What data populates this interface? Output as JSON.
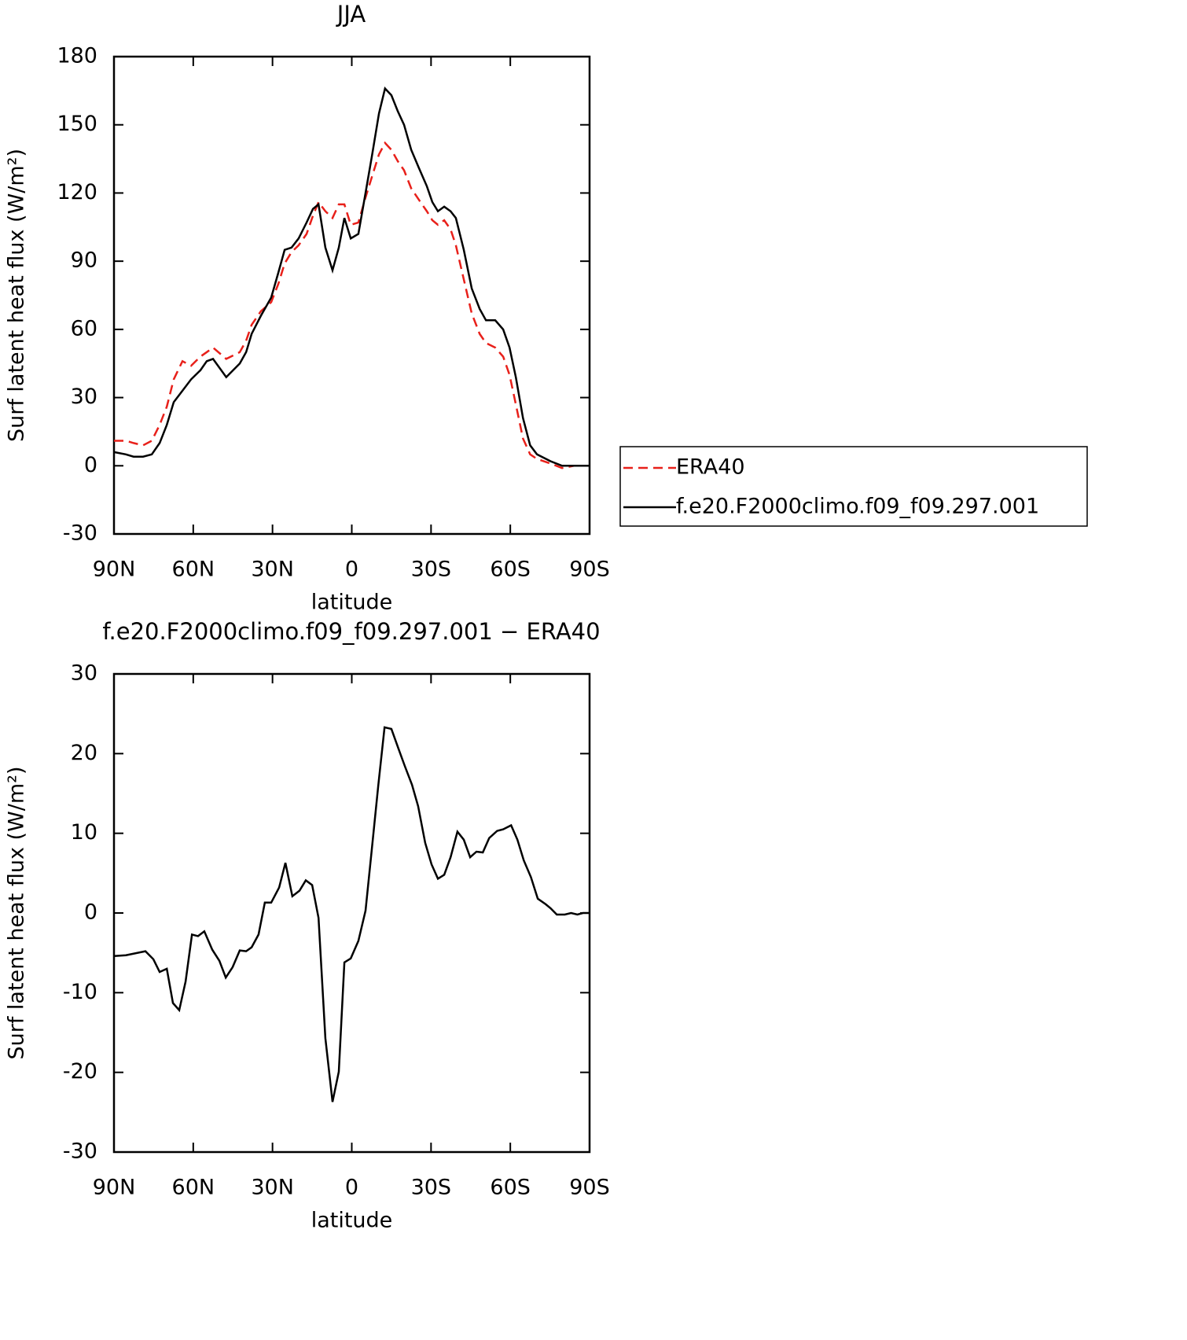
{
  "chart_data": [
    {
      "type": "line",
      "title": "JJA",
      "xlabel": "latitude",
      "ylabel": "Surf latent heat flux (W/m²)",
      "xlim": [
        90,
        -90
      ],
      "xticks": [
        {
          "value": 90,
          "label": "90N"
        },
        {
          "value": 60,
          "label": "60N"
        },
        {
          "value": 30,
          "label": "30N"
        },
        0,
        {
          "value": -30,
          "label": "30S"
        },
        {
          "value": -60,
          "label": "60S"
        },
        {
          "value": -90,
          "label": "90S"
        }
      ],
      "ylim": [
        -30,
        180
      ],
      "yticks": [
        -30,
        0,
        30,
        60,
        90,
        120,
        150,
        180
      ],
      "legend": "right",
      "x": [
        90,
        85.5,
        82.6,
        79,
        75.7,
        72.7,
        70,
        67.4,
        64.1,
        60.8,
        57.3,
        54.9,
        52.5,
        47.5,
        42.4,
        40,
        37.9,
        34.4,
        30.5,
        27.8,
        25.4,
        22.8,
        20.1,
        17.1,
        14.7,
        12.6,
        10,
        7.3,
        4.9,
        2.8,
        0.4,
        -2.5,
        -5.2,
        -7.6,
        -10.3,
        -12.6,
        -15,
        -17.4,
        -19.8,
        -22.5,
        -25.4,
        -28.4,
        -30.5,
        -32.6,
        -35,
        -37.4,
        -39.4,
        -42.4,
        -45.4,
        -48.4,
        -50.8,
        -54.3,
        -57.3,
        -59.7,
        -62.1,
        -64.8,
        -67.5,
        -70.1,
        -75.2,
        -79.6,
        -84.1,
        -90
      ],
      "series": [
        {
          "name": "ERA40",
          "color": "#e8201a",
          "dashed": true,
          "values": [
            11,
            11,
            10,
            9,
            11,
            18,
            26,
            38,
            46,
            44,
            48,
            50,
            52,
            47,
            50,
            55,
            62,
            68,
            72,
            80,
            89,
            94,
            97,
            102,
            110,
            116,
            112,
            109,
            115,
            115,
            106,
            107,
            118,
            127,
            137,
            142,
            139,
            134,
            130,
            122,
            117,
            112,
            108,
            106,
            108,
            104,
            97,
            82,
            67,
            58,
            54,
            52,
            48,
            40,
            27,
            12,
            5,
            3,
            1,
            -1,
            0,
            0
          ]
        },
        {
          "name": "f.e20.F2000climo.f09_f09.297.001",
          "color": "#000000",
          "dashed": false,
          "values": [
            6,
            5,
            4,
            4,
            5,
            10,
            18,
            28,
            33,
            38,
            42,
            46,
            47,
            39,
            45,
            50,
            58,
            66,
            74,
            85,
            95,
            96,
            100,
            107,
            113,
            115,
            96,
            86,
            96,
            109,
            100,
            102,
            120,
            136,
            155,
            166,
            163,
            156,
            150,
            139,
            131,
            123,
            116,
            112,
            114,
            112,
            109,
            95,
            78,
            69,
            64,
            64,
            60,
            52,
            39,
            21,
            9,
            5,
            2,
            0,
            0,
            0
          ]
        }
      ]
    },
    {
      "type": "line",
      "title": "f.e20.F2000climo.f09_f09.297.001 − ERA40",
      "xlabel": "latitude",
      "ylabel": "Surf latent heat flux (W/m²)",
      "xlim": [
        90,
        -90
      ],
      "xticks": [
        {
          "value": 90,
          "label": "90N"
        },
        {
          "value": 60,
          "label": "60N"
        },
        {
          "value": 30,
          "label": "30N"
        },
        0,
        {
          "value": -30,
          "label": "30S"
        },
        {
          "value": -60,
          "label": "60S"
        },
        {
          "value": -90,
          "label": "90S"
        }
      ],
      "ylim": [
        -30,
        30
      ],
      "yticks": [
        -30,
        -20,
        -10,
        0,
        10,
        20,
        30
      ],
      "x": [
        90,
        85.5,
        78.1,
        75.1,
        72.7,
        70,
        67.7,
        65.3,
        62.9,
        60.5,
        58.2,
        55.8,
        52.8,
        50.1,
        47.7,
        45.1,
        42.4,
        40,
        37.9,
        35.3,
        32.9,
        30.5,
        27.5,
        25.1,
        22.5,
        19.8,
        17.4,
        15,
        12.6,
        10,
        7.3,
        4.9,
        2.8,
        0.4,
        -2.5,
        -5.2,
        -7.6,
        -10,
        -12.4,
        -15,
        -17.7,
        -20.1,
        -22.8,
        -25.1,
        -27.8,
        -30.2,
        -32.6,
        -35,
        -37.4,
        -40,
        -42.4,
        -44.8,
        -47.2,
        -49.6,
        -52,
        -55,
        -57.3,
        -60.3,
        -62.7,
        -65.1,
        -67.8,
        -70.4,
        -73.4,
        -75.2,
        -77.6,
        -80.6,
        -83,
        -85.4,
        -87.5,
        -90
      ],
      "series": [
        {
          "color": "#000000",
          "dashed": false,
          "values": [
            -5.4,
            -5.3,
            -4.8,
            -5.8,
            -7.4,
            -7,
            -11.3,
            -12.2,
            -8.6,
            -2.7,
            -2.9,
            -2.3,
            -4.6,
            -6,
            -8.1,
            -6.8,
            -4.7,
            -4.8,
            -4.3,
            -2.7,
            1.3,
            1.3,
            3.2,
            6.3,
            2.1,
            2.8,
            4.1,
            3.5,
            -0.6,
            -15.7,
            -23.7,
            -19.9,
            -6.2,
            -5.7,
            -3.5,
            0.3,
            8,
            15.9,
            23.3,
            23.1,
            20.6,
            18.4,
            16.1,
            13.4,
            8.8,
            6.1,
            4.3,
            4.8,
            7,
            10.2,
            9.2,
            7,
            7.7,
            7.6,
            9.4,
            10.3,
            10.5,
            11,
            9.2,
            6.6,
            4.5,
            1.8,
            1.1,
            0.6,
            -0.2,
            -0.2,
            0,
            -0.2,
            0,
            0
          ]
        }
      ]
    }
  ]
}
